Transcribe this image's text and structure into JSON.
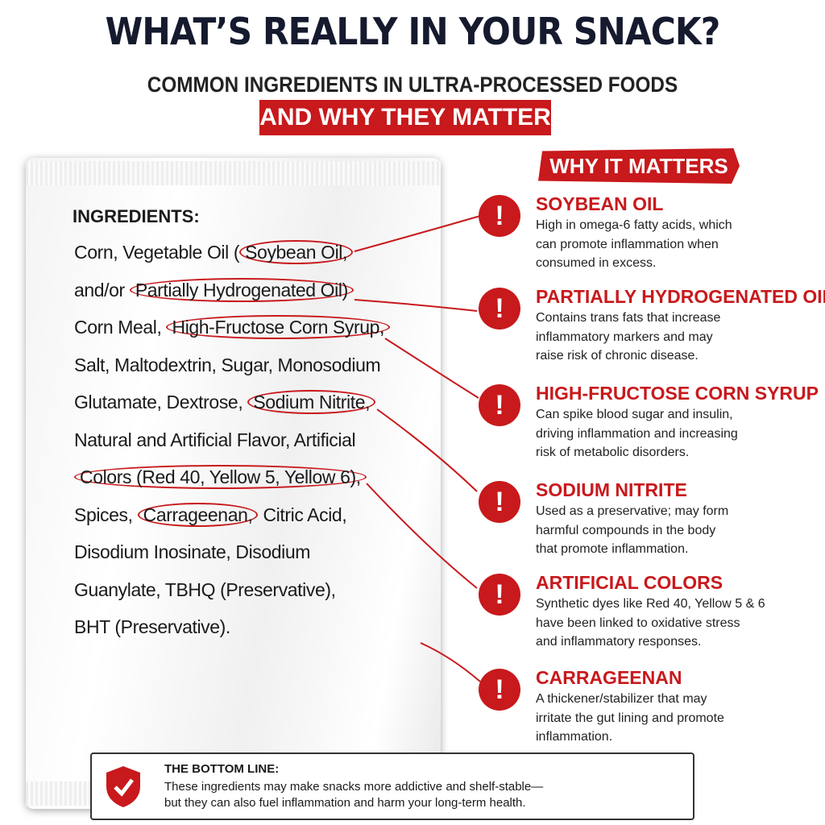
{
  "header": {
    "title": "WHAT’S REALLY IN YOUR SNACK?",
    "subtitle": "COMMON INGREDIENTS IN ULTRA-PROCESSED FOODS",
    "banner": "AND WHY THEY MATTER"
  },
  "ingredients": {
    "label": "INGREDIENTS:",
    "lines": [
      [
        "Corn, Vegetable Oil (",
        "Soybean Oil,"
      ],
      [
        "and/or ",
        "Partially Hydrogenated Oil)"
      ],
      [
        "Corn Meal, ",
        "High-Fructose Corn Syrup,"
      ],
      [
        "Salt, Maltodextrin, Sugar, Monosodium"
      ],
      [
        "Glutamate, Dextrose, ",
        "Sodium Nitrite,"
      ],
      [
        "Natural and Artificial Flavor, Artificial"
      ],
      [
        "Colors (Red 40, Yellow 5, Yellow 6),"
      ],
      [
        "Spices, ",
        "Carrageenan,",
        " Citric Acid,"
      ],
      [
        "Disodium Inosinate, Disodium"
      ],
      [
        "Guanylate, TBHQ (Preservative),"
      ],
      [
        "BHT (Preservative)."
      ]
    ]
  },
  "why": {
    "heading": "WHY IT MATTERS",
    "items": [
      {
        "title": "SOYBEAN OIL",
        "lines": [
          "High in omega-6 fatty acids, which",
          "can promote inflammation when",
          "consumed in excess."
        ]
      },
      {
        "title": "PARTIALLY HYDROGENATED OIL",
        "lines": [
          "Contains trans fats that increase",
          "inflammatory markers and may",
          "raise risk of chronic disease."
        ]
      },
      {
        "title": "HIGH-FRUCTOSE CORN SYRUP",
        "lines": [
          "Can spike blood sugar and insulin,",
          "driving inflammation and increasing",
          "risk of metabolic disorders."
        ]
      },
      {
        "title": "SODIUM NITRITE",
        "lines": [
          "Used as a preservative; may form",
          "harmful compounds in the body",
          "that promote inflammation."
        ]
      },
      {
        "title": "ARTIFICIAL COLORS",
        "lines": [
          "Synthetic dyes like Red 40, Yellow 5 & 6",
          "have been linked to oxidative stress",
          "and inflammatory responses."
        ]
      },
      {
        "title": "CARRAGEENAN",
        "lines": [
          "A thickener/stabilizer that may",
          "irritate the gut lining and promote",
          "inflammation."
        ]
      }
    ]
  },
  "bottom_line": {
    "title": "THE BOTTOM LINE:",
    "lines": [
      "These ingredients may make snacks more addictive and shelf-stable—",
      "but they can also fuel inflammation and harm your long-term health."
    ]
  }
}
